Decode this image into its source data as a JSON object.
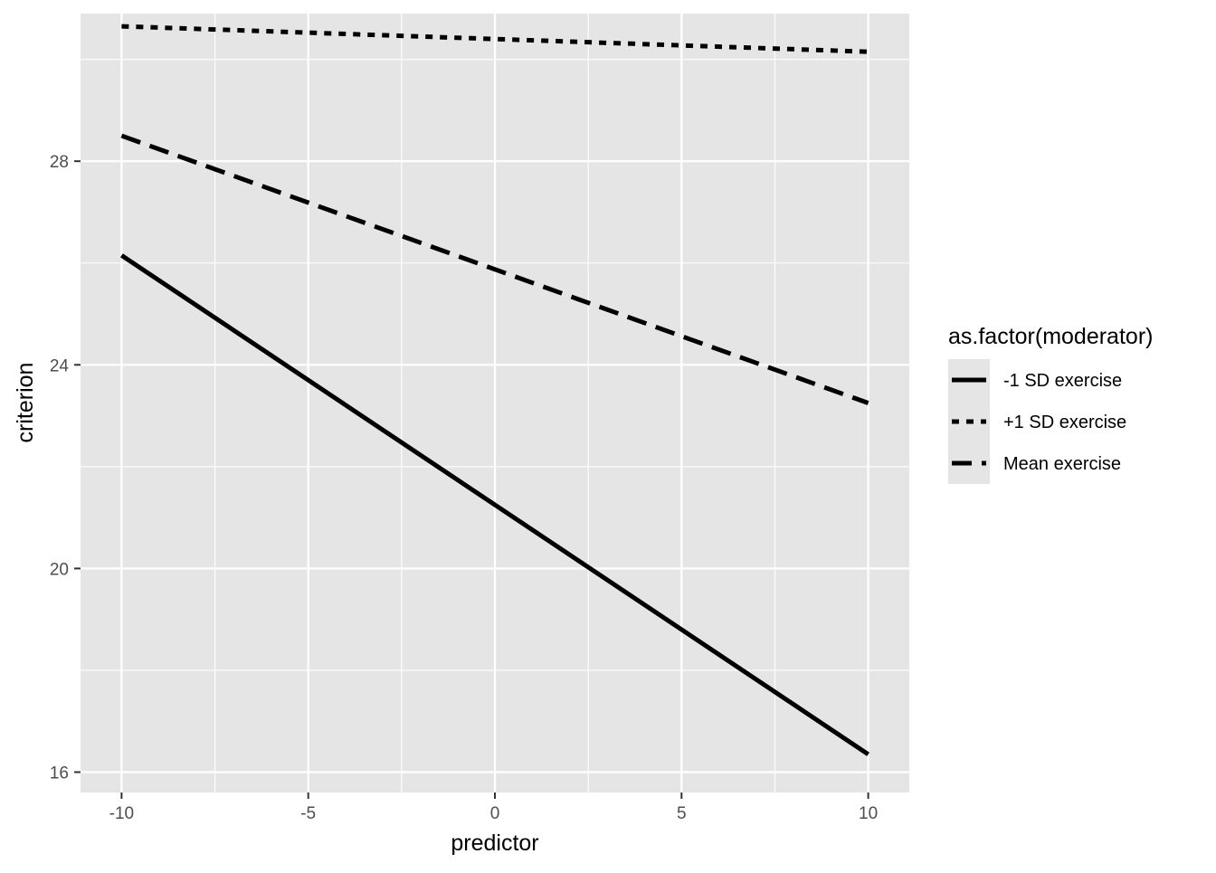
{
  "chart_data": {
    "type": "line",
    "title": "",
    "xlabel": "predictor",
    "ylabel": "criterion",
    "xlim": [
      -11.1,
      11.1
    ],
    "ylim": [
      15.6,
      30.9
    ],
    "x_ticks": [
      -10,
      -5,
      0,
      5,
      10
    ],
    "x_tick_labels": [
      "-10",
      "-5",
      "0",
      "5",
      "10"
    ],
    "y_ticks": [
      16,
      20,
      24,
      28
    ],
    "y_tick_labels": [
      "16",
      "20",
      "24",
      "28"
    ],
    "x_minor_ticks": [
      -7.5,
      -2.5,
      2.5,
      7.5
    ],
    "y_minor_ticks": [
      18,
      22,
      26,
      30
    ],
    "grid": true,
    "legend": {
      "title": "as.factor(moderator)",
      "position": "right"
    },
    "series": [
      {
        "name": "-1 SD exercise",
        "linetype": "solid",
        "x": [
          -10,
          10
        ],
        "y": [
          26.15,
          16.35
        ]
      },
      {
        "name": "+1 SD exercise",
        "linetype": "dotted",
        "x": [
          -10,
          10
        ],
        "y": [
          30.65,
          30.15
        ]
      },
      {
        "name": "Mean exercise",
        "linetype": "dashed",
        "x": [
          -10,
          10
        ],
        "y": [
          28.5,
          23.25
        ]
      }
    ],
    "colors": {
      "panel_background": "#e5e5e5",
      "grid_line": "#ffffff",
      "series_line": "#000000",
      "tick_label": "#4d4d4d",
      "axis_title": "#000000"
    }
  }
}
